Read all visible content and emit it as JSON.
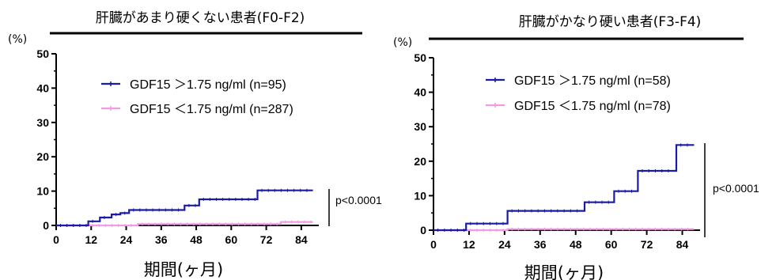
{
  "chart_data": [
    {
      "type": "line",
      "title": "肝臓があまり硬くない患者(F0-F2)",
      "ylabel": "(%)",
      "xlabel": "期間(ヶ月)",
      "ylim": [
        0,
        50
      ],
      "xlim": [
        0,
        90
      ],
      "yticks": [
        "0",
        "10",
        "20",
        "30",
        "40",
        "50"
      ],
      "xticks": [
        "0",
        "12",
        "24",
        "36",
        "48",
        "60",
        "72",
        "84"
      ],
      "p_value": "p<0.0001",
      "series": [
        {
          "name": "GDF15 ＞1.75 ng/ml (n=95)",
          "color": "#1a1aa6",
          "x": [
            0,
            11,
            11,
            15,
            15,
            19,
            19,
            22,
            22,
            25,
            25,
            44,
            44,
            49,
            49,
            69,
            69,
            88
          ],
          "y": [
            0,
            0,
            1.2,
            1.2,
            2.3,
            2.3,
            3.2,
            3.2,
            3.6,
            3.6,
            4.5,
            4.5,
            5.8,
            5.8,
            7.6,
            7.6,
            10.2,
            10.2
          ]
        },
        {
          "name": "GDF15 ＜1.75 ng/ml (n=287)",
          "color": "#f29ae6",
          "x": [
            0,
            28,
            28,
            77,
            77,
            88
          ],
          "y": [
            0,
            0,
            0.4,
            0.4,
            1.0,
            1.0
          ]
        }
      ]
    },
    {
      "type": "line",
      "title": "肝臓がかなり硬い患者(F3-F4)",
      "ylabel": "(%)",
      "xlabel": "期間(ヶ月)",
      "ylim": [
        0,
        50
      ],
      "xlim": [
        0,
        90
      ],
      "yticks": [
        "0",
        "10",
        "20",
        "30",
        "40",
        "50"
      ],
      "xticks": [
        "0",
        "12",
        "24",
        "36",
        "48",
        "60",
        "72",
        "84"
      ],
      "p_value": "p<0.0001",
      "series": [
        {
          "name": "GDF15 ＞1.75 ng/ml (n=58)",
          "color": "#1a1aa6",
          "x": [
            0,
            11,
            11,
            25,
            25,
            51,
            51,
            61,
            61,
            69,
            69,
            82,
            82,
            88
          ],
          "y": [
            0,
            0,
            1.9,
            1.9,
            5.6,
            5.6,
            8.1,
            8.1,
            11.3,
            11.3,
            17.2,
            17.2,
            24.7,
            24.7
          ]
        },
        {
          "name": "GDF15 ＜1.75 ng/ml (n=78)",
          "color": "#f29ae6",
          "x": [
            0,
            25,
            25,
            88
          ],
          "y": [
            0,
            0,
            0.3,
            0.3
          ]
        }
      ]
    }
  ]
}
